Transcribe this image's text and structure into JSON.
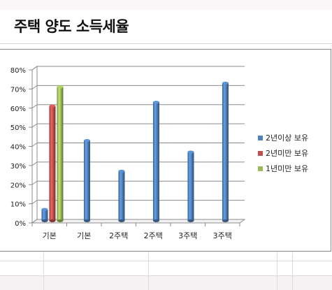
{
  "page": {
    "title": "주택 양도 소득세율"
  },
  "chart_data": {
    "type": "bar",
    "ylim": [
      0,
      80
    ],
    "y_ticks": [
      0,
      10,
      20,
      30,
      40,
      50,
      60,
      70,
      80
    ],
    "y_tick_labels": [
      "0%",
      "10%",
      "20%",
      "30%",
      "40%",
      "50%",
      "60%",
      "70%",
      "80%"
    ],
    "categories": [
      "기본",
      "기본",
      "2주택",
      "2주택",
      "3주택",
      "3주택"
    ],
    "series": [
      {
        "name": "2년이상 보유",
        "color": "#4f81bd",
        "values": [
          6,
          42,
          26,
          62,
          36,
          72
        ]
      },
      {
        "name": "2년미만 보유",
        "color": "#c0504d",
        "values": [
          60,
          null,
          null,
          null,
          null,
          null
        ]
      },
      {
        "name": "1년미만 보유",
        "color": "#9bbb59",
        "values": [
          70,
          null,
          null,
          null,
          null,
          null
        ]
      }
    ],
    "grid": true,
    "legend": "right"
  }
}
